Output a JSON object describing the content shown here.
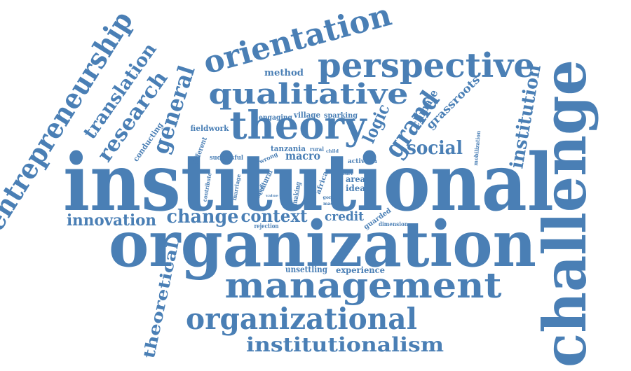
{
  "color": "#4a7fb5",
  "words": [
    {
      "key": "institutional",
      "text": "institutional"
    },
    {
      "key": "organization",
      "text": "organization"
    },
    {
      "key": "challenge",
      "text": "challenge"
    },
    {
      "key": "management",
      "text": "management"
    },
    {
      "key": "organizational",
      "text": "organizational"
    },
    {
      "key": "institutionalism",
      "text": "institutionalism"
    },
    {
      "key": "theory",
      "text": "theory"
    },
    {
      "key": "perspective",
      "text": "perspective"
    },
    {
      "key": "orientation",
      "text": "orientation"
    },
    {
      "key": "qualitative",
      "text": "qualitative"
    },
    {
      "key": "entrepreneurship",
      "text": "entrepreneurship"
    },
    {
      "key": "translation",
      "text": "translation"
    },
    {
      "key": "research",
      "text": "research"
    },
    {
      "key": "general",
      "text": "general"
    },
    {
      "key": "grand",
      "text": "grand"
    },
    {
      "key": "logic",
      "text": "logic"
    },
    {
      "key": "institution",
      "text": "institution"
    },
    {
      "key": "social",
      "text": "social"
    },
    {
      "key": "change",
      "text": "change"
    },
    {
      "key": "context",
      "text": "context"
    },
    {
      "key": "innovation",
      "text": "innovation"
    },
    {
      "key": "theoretical",
      "text": "theoretical"
    },
    {
      "key": "method",
      "text": "method"
    },
    {
      "key": "credit",
      "text": "credit"
    },
    {
      "key": "macro",
      "text": "macro"
    },
    {
      "key": "climate",
      "text": "climate"
    },
    {
      "key": "grassroots",
      "text": "grassroots"
    },
    {
      "key": "fieldwork",
      "text": "fieldwork"
    },
    {
      "key": "engaging",
      "text": "engaging"
    },
    {
      "key": "village",
      "text": "village"
    },
    {
      "key": "sparking",
      "text": "sparking"
    },
    {
      "key": "conducting",
      "text": "conducting"
    },
    {
      "key": "different",
      "text": "different"
    },
    {
      "key": "successful",
      "text": "successful"
    },
    {
      "key": "tanzania",
      "text": "tanzania"
    },
    {
      "key": "activism",
      "text": "activism"
    },
    {
      "key": "area",
      "text": "area"
    },
    {
      "key": "idea",
      "text": "idea"
    },
    {
      "key": "mobilization",
      "text": "mobilization"
    },
    {
      "key": "guarded",
      "text": "guarded"
    },
    {
      "key": "dimension",
      "text": "dimension"
    },
    {
      "key": "experience",
      "text": "experience"
    },
    {
      "key": "unsettling",
      "text": "unsettling"
    },
    {
      "key": "rejection",
      "text": "rejection"
    },
    {
      "key": "cultural",
      "text": "cultural"
    },
    {
      "key": "making",
      "text": "making"
    },
    {
      "key": "africa",
      "text": "africa"
    },
    {
      "key": "marriage",
      "text": "marriage"
    },
    {
      "key": "contribute",
      "text": "contribute"
    },
    {
      "key": "wrong",
      "text": "wrong"
    },
    {
      "key": "rural",
      "text": "rural"
    },
    {
      "key": "child",
      "text": "child"
    },
    {
      "key": "hurt",
      "text": "hurt"
    },
    {
      "key": "gone",
      "text": "gone"
    },
    {
      "key": "mask",
      "text": "mask"
    },
    {
      "key": "lived",
      "text": "lived"
    },
    {
      "key": "value",
      "text": "value"
    },
    {
      "key": "activist",
      "text": "activist"
    }
  ]
}
